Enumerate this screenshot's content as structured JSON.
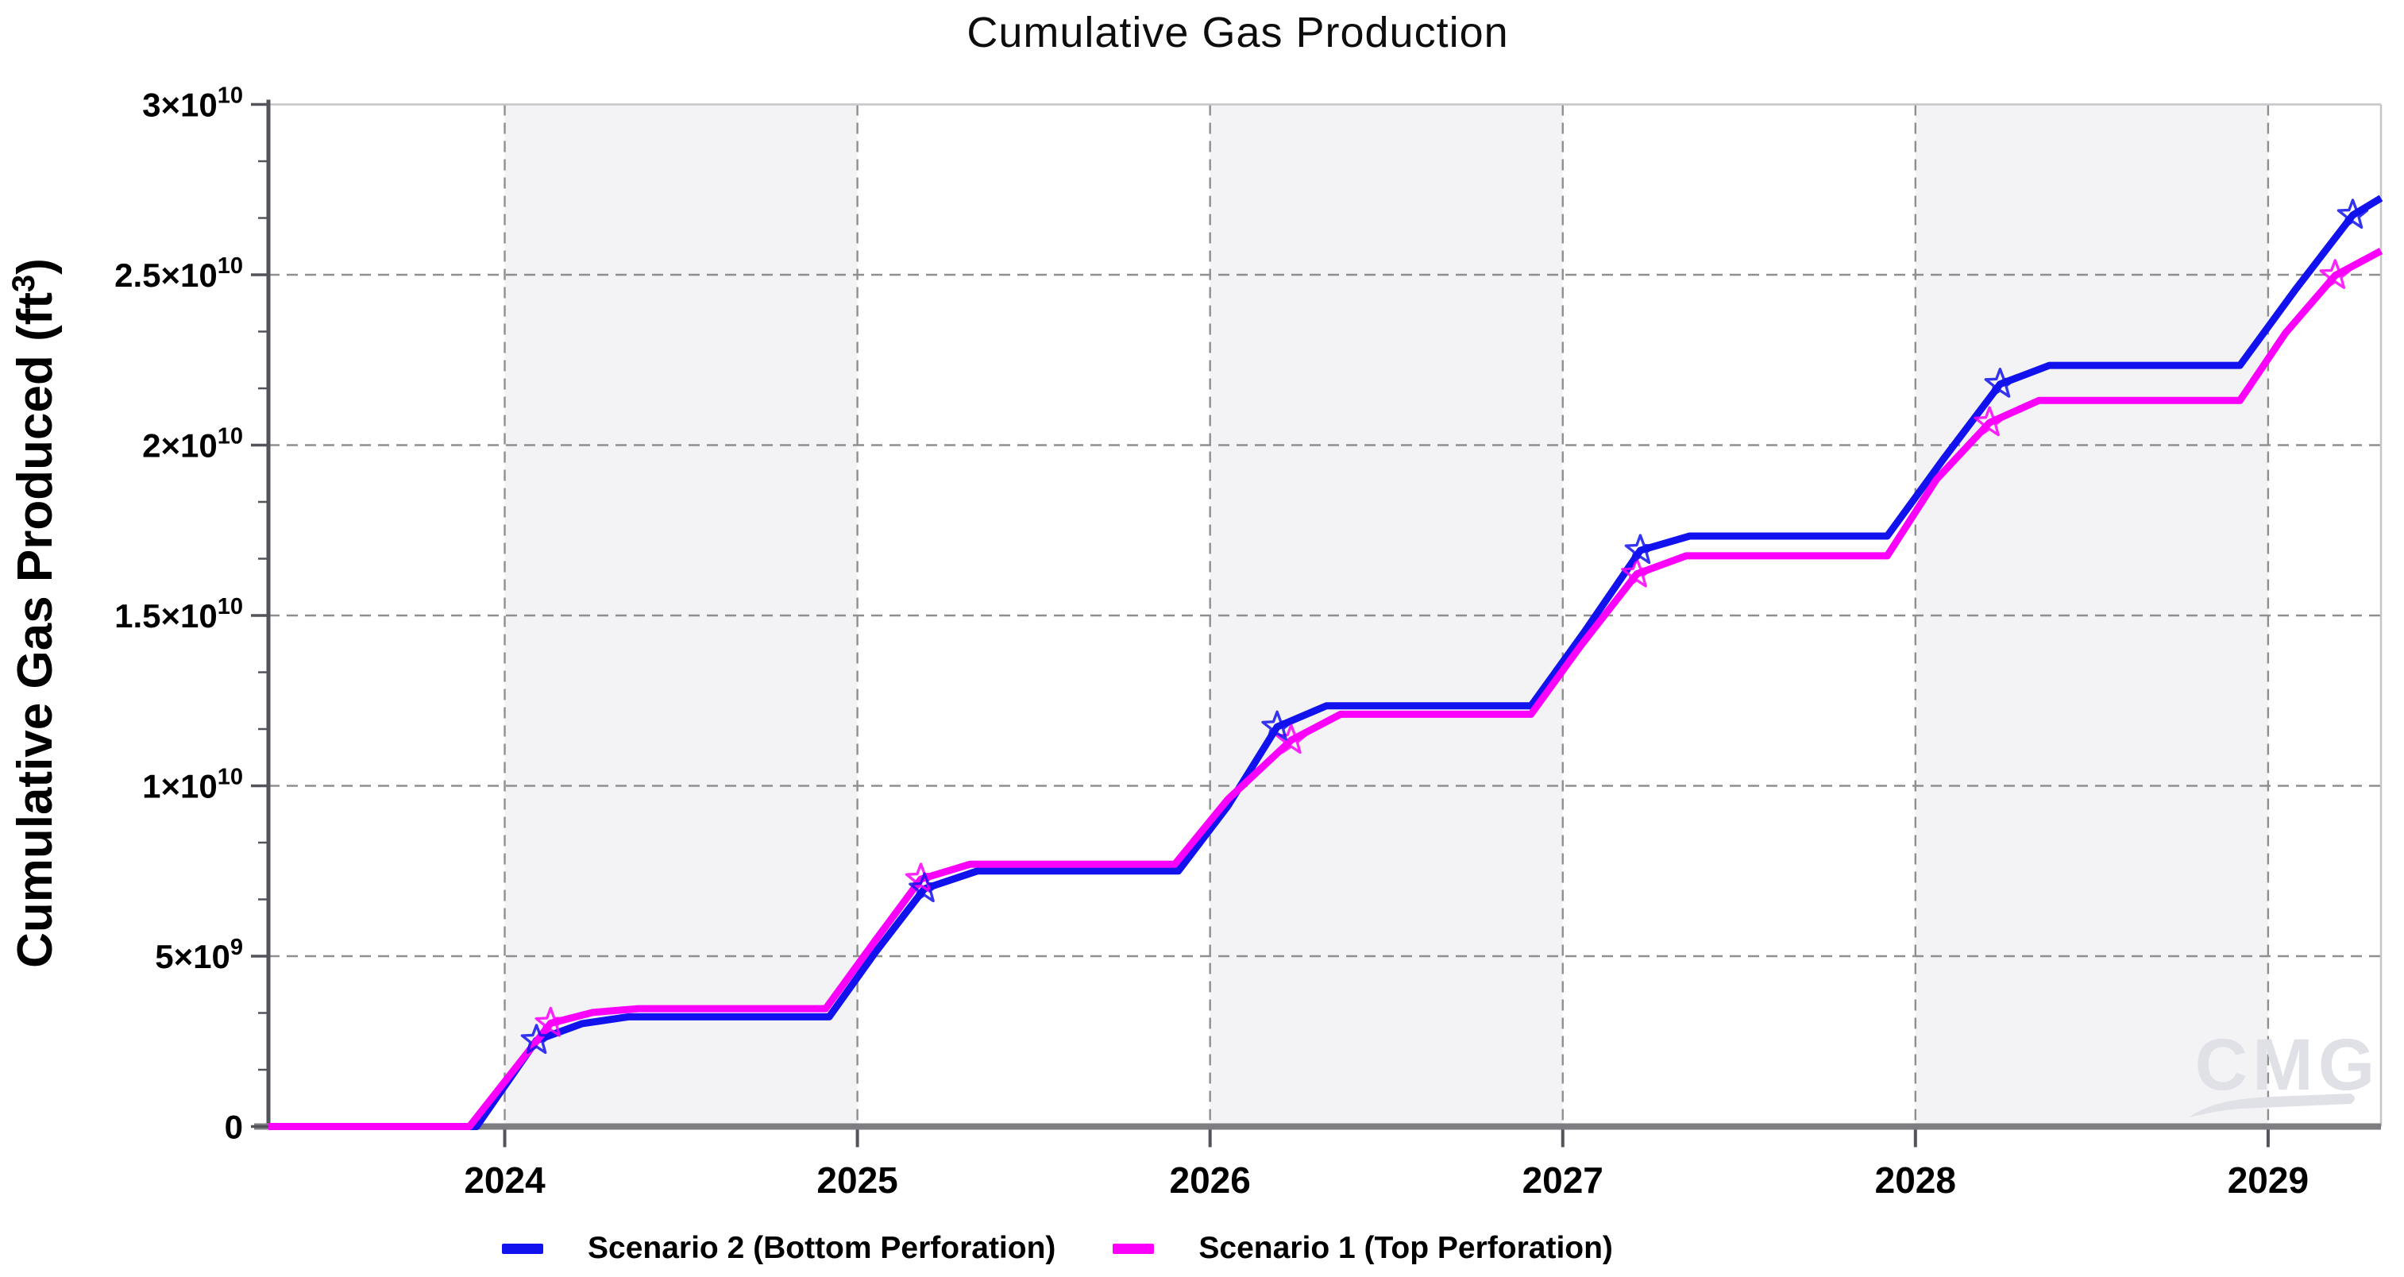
{
  "title": "Cumulative Gas Production",
  "y_axis": {
    "label_main": "Cumulative Gas Produced (ft",
    "label_sup": "3",
    "label_close": ")"
  },
  "legend": [
    {
      "label": "Scenario 2 (Bottom Perforation)",
      "color": "#1212EE"
    },
    {
      "label": "Scenario 1 (Top Perforation)",
      "color": "#FB00FB"
    }
  ],
  "watermark": "CMG",
  "colors": {
    "scenario2_blue": "#1212EE",
    "scenario1_magenta": "#FB00FB",
    "gridline": "#8F8F8F",
    "band_fill": "#F3F3F5",
    "axis_left": "#53535B",
    "axis_bottom": "#7E7E82",
    "frame": "#C6C6CA",
    "tick_label": "#000000",
    "watermark_gray": "#E0E1E6"
  },
  "chart_data": {
    "type": "line",
    "title": "Cumulative Gas Production",
    "xlabel": "",
    "ylabel": "Cumulative Gas Produced (ft3)",
    "xlim": [
      2023.33,
      2029.32
    ],
    "ylim": [
      0,
      30000000000.0
    ],
    "x_ticks": [
      2024,
      2025,
      2026,
      2027,
      2028,
      2029
    ],
    "y_ticks": [
      {
        "base": "0",
        "exp": "",
        "value": 0
      },
      {
        "base": "5×10",
        "exp": "9",
        "value": 5000000000.0
      },
      {
        "base": "1×10",
        "exp": "10",
        "value": 10000000000.0
      },
      {
        "base": "1.5×10",
        "exp": "10",
        "value": 15000000000.0
      },
      {
        "base": "2×10",
        "exp": "10",
        "value": 20000000000.0
      },
      {
        "base": "2.5×10",
        "exp": "10",
        "value": 25000000000.0
      },
      {
        "base": "3×10",
        "exp": "10",
        "value": 30000000000.0
      }
    ],
    "y_minor_ticks_per_interval": 2,
    "grid": "dashed-at-major-ticks",
    "shaded_year_bands": [
      [
        2024,
        2025
      ],
      [
        2026,
        2027
      ],
      [
        2028,
        2029
      ]
    ],
    "legend_position": "bottom-center",
    "marker_style": "open-star",
    "series": [
      {
        "name": "Scenario 2 (Bottom Perforation)",
        "color": "#1212EE",
        "points": [
          [
            2023.33,
            0
          ],
          [
            2023.92,
            0
          ],
          [
            2024.09,
            2530000000.0
          ],
          [
            2024.22,
            3020000000.0
          ],
          [
            2024.35,
            3220000000.0
          ],
          [
            2024.92,
            3220000000.0
          ],
          [
            2025.05,
            5100000000.0
          ],
          [
            2025.19,
            6980000000.0
          ],
          [
            2025.34,
            7500000000.0
          ],
          [
            2025.91,
            7500000000.0
          ],
          [
            2026.05,
            9400000000.0
          ],
          [
            2026.19,
            11730000000.0
          ],
          [
            2026.33,
            12350000000.0
          ],
          [
            2026.91,
            12350000000.0
          ],
          [
            2027.06,
            14500000000.0
          ],
          [
            2027.22,
            16910000000.0
          ],
          [
            2027.36,
            17330000000.0
          ],
          [
            2027.92,
            17330000000.0
          ],
          [
            2028.08,
            19600000000.0
          ],
          [
            2028.24,
            21790000000.0
          ],
          [
            2028.38,
            22340000000.0
          ],
          [
            2028.92,
            22340000000.0
          ],
          [
            2029.08,
            24600000000.0
          ],
          [
            2029.24,
            26750000000.0
          ],
          [
            2029.32,
            27250000000.0
          ]
        ],
        "marker_points": [
          [
            2024.09,
            2530000000.0
          ],
          [
            2025.19,
            6980000000.0
          ],
          [
            2026.19,
            11730000000.0
          ],
          [
            2027.22,
            16910000000.0
          ],
          [
            2028.24,
            21790000000.0
          ],
          [
            2029.24,
            26750000000.0
          ]
        ]
      },
      {
        "name": "Scenario 1 (Top Perforation)",
        "color": "#FB00FB",
        "points": [
          [
            2023.33,
            0
          ],
          [
            2023.9,
            0
          ],
          [
            2024.13,
            3030000000.0
          ],
          [
            2024.25,
            3350000000.0
          ],
          [
            2024.38,
            3460000000.0
          ],
          [
            2024.91,
            3460000000.0
          ],
          [
            2025.05,
            5450000000.0
          ],
          [
            2025.18,
            7260000000.0
          ],
          [
            2025.32,
            7700000000.0
          ],
          [
            2025.9,
            7700000000.0
          ],
          [
            2026.05,
            9600000000.0
          ],
          [
            2026.23,
            11340000000.0
          ],
          [
            2026.37,
            12100000000.0
          ],
          [
            2026.91,
            12100000000.0
          ],
          [
            2027.05,
            14100000000.0
          ],
          [
            2027.21,
            16220000000.0
          ],
          [
            2027.35,
            16750000000.0
          ],
          [
            2027.92,
            16750000000.0
          ],
          [
            2028.06,
            19000000000.0
          ],
          [
            2028.21,
            20660000000.0
          ],
          [
            2028.35,
            21310000000.0
          ],
          [
            2028.92,
            21310000000.0
          ],
          [
            2029.05,
            23300000000.0
          ],
          [
            2029.19,
            24980000000.0
          ],
          [
            2029.32,
            25700000000.0
          ]
        ],
        "marker_points": [
          [
            2024.13,
            3030000000.0
          ],
          [
            2025.18,
            7260000000.0
          ],
          [
            2026.23,
            11340000000.0
          ],
          [
            2027.21,
            16220000000.0
          ],
          [
            2028.21,
            20660000000.0
          ],
          [
            2029.19,
            24980000000.0
          ]
        ]
      }
    ]
  }
}
